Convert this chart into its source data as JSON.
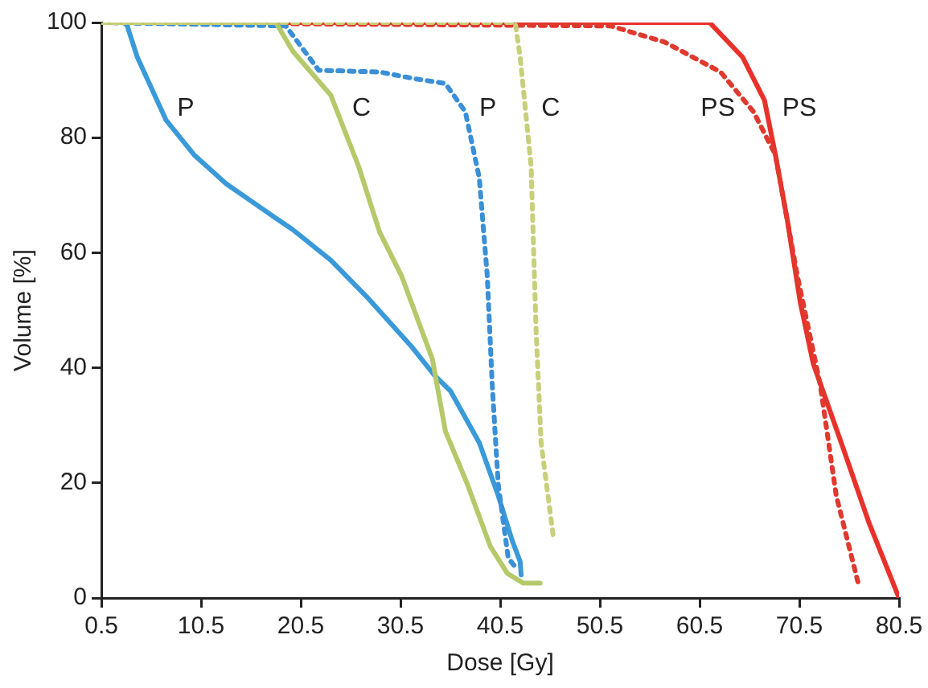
{
  "chart_data": {
    "type": "line",
    "xlabel": "Dose [Gy]",
    "ylabel": "Volume [%]",
    "xlim": [
      0.5,
      80.5
    ],
    "ylim": [
      0,
      100
    ],
    "xticks": [
      0.5,
      10.5,
      20.5,
      30.5,
      40.5,
      50.5,
      60.5,
      70.5,
      80.5
    ],
    "yticks": [
      0,
      20,
      40,
      60,
      80,
      100
    ],
    "grid": false,
    "legend": false,
    "marker": "none",
    "series": [
      {
        "name": "C",
        "color": "#c8cf7a",
        "line_style": "dotted",
        "x": [
          0.5,
          42,
          42.5,
          43.6,
          44.1,
          44.6,
          45.8
        ],
        "values": [
          100,
          100,
          94,
          75,
          46.4,
          27,
          11
        ]
      },
      {
        "name": "C",
        "color": "#b5c96a",
        "line_style": "solid",
        "x": [
          0.5,
          18,
          19.7,
          23.5,
          26.3,
          28.4,
          30.6,
          33.7,
          35,
          37.2,
          39.5,
          41.2,
          42.8,
          44.5
        ],
        "values": [
          100,
          100,
          95,
          87.4,
          75,
          63.6,
          56,
          41.5,
          29,
          19.8,
          9,
          4.3,
          2.6,
          2.6
        ]
      },
      {
        "name": "P",
        "color": "#3a8fd6",
        "line_style": "dotted",
        "x": [
          0.5,
          19,
          22.3,
          28.4,
          31.7,
          35,
          37,
          38.4,
          39.2,
          39.7,
          40.3,
          41.3,
          42
        ],
        "values": [
          100,
          99.4,
          91.7,
          91.4,
          90.3,
          89.4,
          84.5,
          73,
          56,
          37,
          19.8,
          7,
          5.4
        ]
      },
      {
        "name": "P",
        "color": "#3a9ad9",
        "line_style": "solid",
        "x": [
          2.8,
          3.1,
          4.1,
          7,
          9.8,
          13,
          18,
          19.7,
          23.5,
          27.3,
          31.7,
          33.9,
          35.5,
          38.4,
          40.3,
          41.7,
          42.5,
          42.6
        ],
        "values": [
          100,
          99.4,
          94,
          83,
          77,
          72,
          66,
          64,
          58.7,
          52,
          43.5,
          38.7,
          36,
          27,
          17.8,
          10,
          6.3,
          4
        ]
      },
      {
        "name": "PS",
        "color": "#e0392d",
        "line_style": "dotted",
        "x": [
          0.5,
          51.6,
          57,
          62.6,
          65.9,
          68.1,
          70.3,
          72.6,
          74.2,
          76.4
        ],
        "values": [
          100,
          99.4,
          96.6,
          91.4,
          84.5,
          77,
          56,
          37,
          17.8,
          2.6
        ]
      },
      {
        "name": "PS",
        "color": "#e8312a",
        "line_style": "solid",
        "x": [
          0.5,
          61.5,
          64.8,
          67,
          68.1,
          69.3,
          70.6,
          71.9,
          74.7,
          77.5,
          80.5
        ],
        "values": [
          100,
          100,
          94,
          86.5,
          77,
          65.6,
          51.3,
          40.7,
          27,
          13,
          0
        ]
      }
    ]
  }
}
